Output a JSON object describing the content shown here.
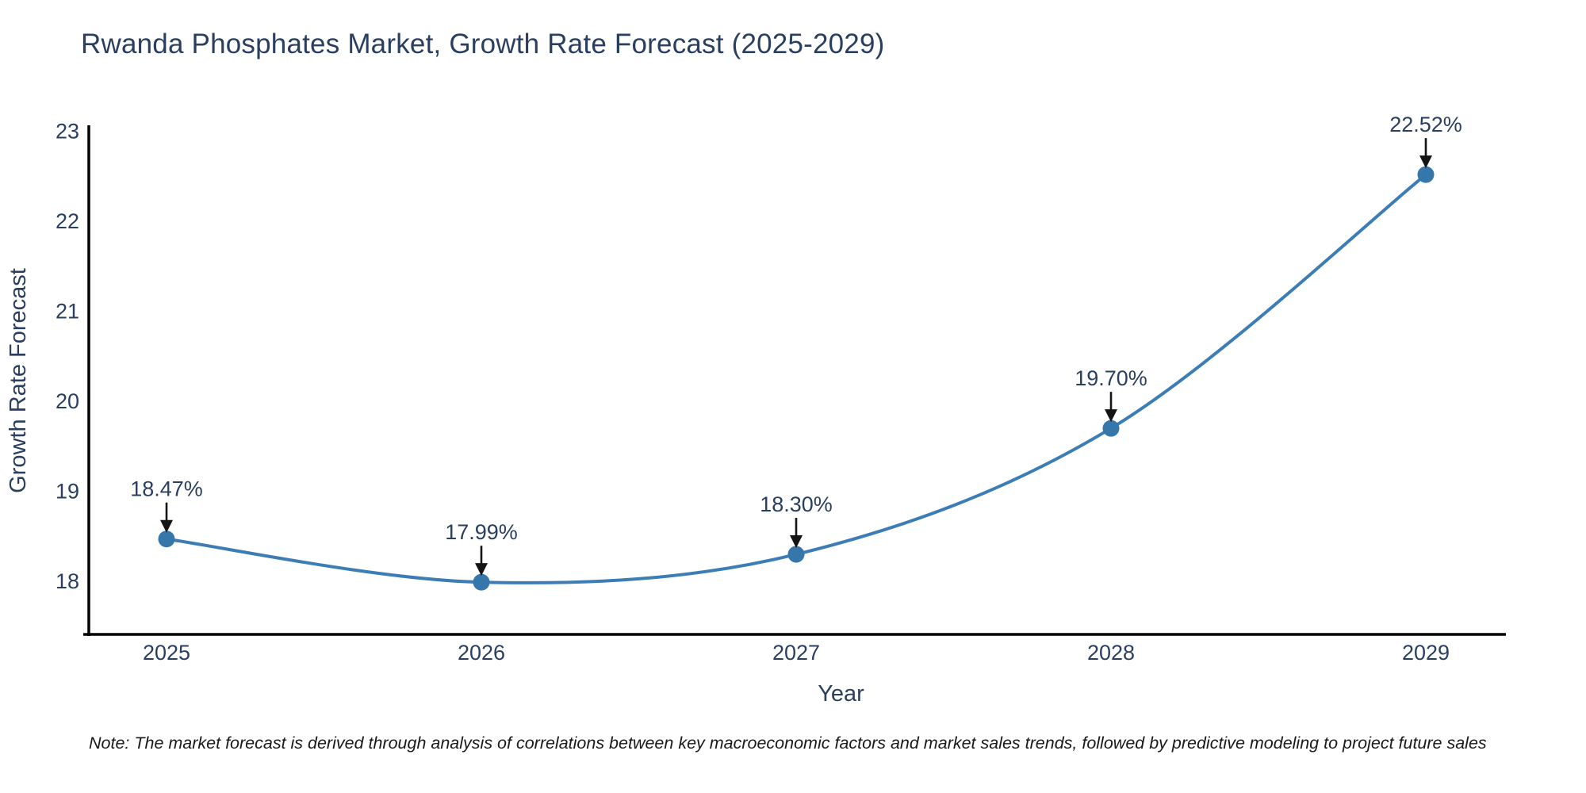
{
  "figure": {
    "note": "Note: The market forecast is derived through analysis of correlations between key macroeconomic factors and market sales trends, followed by predictive modeling to project future sales"
  },
  "chart_data": {
    "type": "line",
    "title": "Rwanda Phosphates Market, Growth Rate Forecast (2025-2029)",
    "xlabel": "Year",
    "ylabel": "Growth Rate Forecast",
    "categories": [
      "2025",
      "2026",
      "2027",
      "2028",
      "2029"
    ],
    "series": [
      {
        "name": "Growth Rate Forecast",
        "values": [
          18.47,
          17.99,
          18.3,
          19.7,
          22.52
        ]
      }
    ],
    "point_labels": [
      "18.47%",
      "17.99%",
      "18.30%",
      "19.70%",
      "22.52%"
    ],
    "y_ticks": [
      23,
      22,
      21,
      20,
      19,
      18
    ],
    "ylim": [
      17.41,
      23.05
    ],
    "grid": false,
    "legend_position": "none",
    "line_shape": "spline",
    "line_color": "#3c7db5",
    "marker_color": "#3576ab",
    "axis_color": "#000000",
    "text_color": "#2a3f5f",
    "annotation_arrow_color": "#141414"
  }
}
